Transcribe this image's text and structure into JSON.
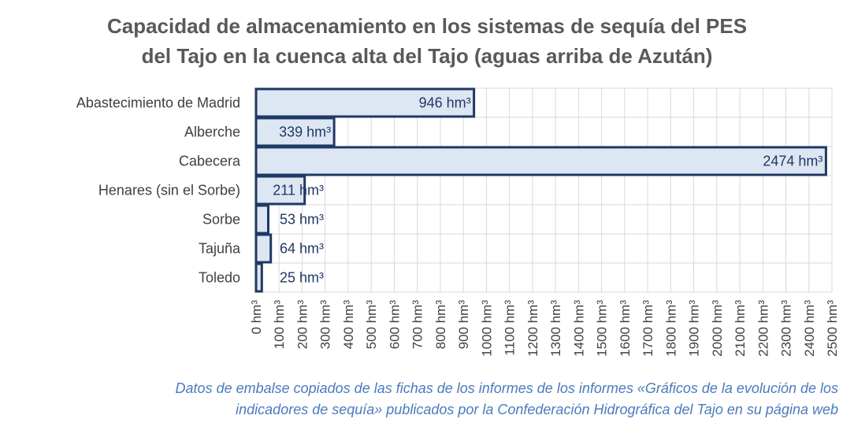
{
  "chart_data": {
    "type": "bar",
    "orientation": "horizontal",
    "title_line1": "Capacidad de almacenamiento en los sistemas de sequía del PES",
    "title_line2": "del Tajo en la cuenca alta del Tajo (aguas arriba de Azután)",
    "categories": [
      "Abastecimiento de Madrid",
      "Alberche",
      "Cabecera",
      "Henares (sin el Sorbe)",
      "Sorbe",
      "Tajuña",
      "Toledo"
    ],
    "values": [
      946,
      339,
      2474,
      211,
      53,
      64,
      25
    ],
    "data_labels": [
      "946 hm³",
      "339 hm³",
      "2474 hm³",
      "211 hm³",
      "53 hm³",
      "64 hm³",
      "25 hm³"
    ],
    "unit": "hm³",
    "xlim": [
      0,
      2500
    ],
    "x_ticks": [
      "0 hm³",
      "100 hm³",
      "200 hm³",
      "300 hm³",
      "400 hm³",
      "500 hm³",
      "600 hm³",
      "700 hm³",
      "800 hm³",
      "900 hm³",
      "1000 hm³",
      "1100 hm³",
      "1200 hm³",
      "1300 hm³",
      "1400 hm³",
      "1500 hm³",
      "1600 hm³",
      "1700 hm³",
      "1800 hm³",
      "1900 hm³",
      "2000 hm³",
      "2100 hm³",
      "2200 hm³",
      "2300 hm³",
      "2400 hm³",
      "2500 hm³"
    ],
    "grid": true,
    "legend": "none"
  },
  "source_line1": "Datos de embalse copiados de las fichas de los informes de los informes «Gráficos de la evolución de los",
  "source_line2": "indicadores de sequía» publicados por la Confederación Hidrográfica del Tajo en su página web",
  "colors": {
    "bar_fill": "#dde6f3",
    "bar_stroke": "#1f3864",
    "grid": "#d9d9d9",
    "text": "#404040",
    "title": "#595959",
    "source": "#4a7bbd"
  }
}
